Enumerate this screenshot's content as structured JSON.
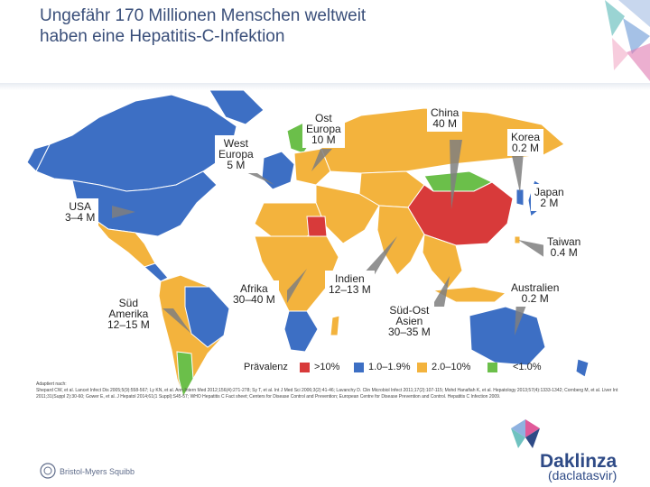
{
  "title": {
    "line1": "Ungefähr 170 Millionen Menschen weltweit",
    "line2": "haben eine  Hepatitis-C-Infektion"
  },
  "regions": {
    "west_europa": {
      "l1": "West",
      "l2": "Europa",
      "l3": "5 M"
    },
    "ost_europa": {
      "l1": "Ost",
      "l2": "Europa",
      "l3": "10 M"
    },
    "china": {
      "l1": "China",
      "l2": "40 M"
    },
    "korea": {
      "l1": "Korea",
      "l2": "0.2 M"
    },
    "japan": {
      "l1": "Japan",
      "l2": "2 M"
    },
    "usa": {
      "l1": "USA",
      "l2": "3–4 M"
    },
    "taiwan": {
      "l1": "Taiwan",
      "l2": "0.4 M"
    },
    "indien": {
      "l1": "Indien",
      "l2": "12–13 M"
    },
    "afrika": {
      "l1": "Afrika",
      "l2": "30–40 M"
    },
    "australien": {
      "l1": "Australien",
      "l2": "0.2 M"
    },
    "sued_amerika": {
      "l1": "Süd",
      "l2": "Amerika",
      "l3": "12–15 M"
    },
    "sued_ost_asien": {
      "l1": "Süd-Ost",
      "l2": "Asien",
      "l3": "30–35 M"
    }
  },
  "legend": {
    "title": "Prävalenz",
    "items": [
      {
        "label": ">10%",
        "color": "#d83a3a"
      },
      {
        "label": "1.0–1.9%",
        "color": "#3d6fc4"
      },
      {
        "label": "2.0–10%",
        "color": "#f3b33d"
      },
      {
        "label": "<1.0%",
        "color": "#6bbf4a"
      }
    ]
  },
  "references": {
    "heading": "Adaptiert nach:",
    "text": "Shepard CW, et al. Lancet Infect Dis 2005;5(9):558-567; Ly KN, et al. Ann Intern Med 2012;156(4):271-278; Sy T, et al. Int J Med Sci 2006;3(2):41-46; Lavanchy D. Clin Microbiol Infect 2011;17(2):107-115; Mohd Hanafiah K, et al. Hepatology 2013;57(4):1333-1342; Cornberg M, et al. Liver Int 2011;31(Suppl 2):30-60; Gower E, et al. J Hepatol 2014;61(1 Suppl):S45-57; WHO Hepatitis C Fact sheet; Centers for Disease Control and Prevention; European Centre for Disease Prevention and Control. Hepatitis C Infection 2009."
  },
  "logos": {
    "bms": "Bristol-Myers Squibb",
    "product": "Daklinza",
    "product_sub": "(daclatasvir)"
  }
}
